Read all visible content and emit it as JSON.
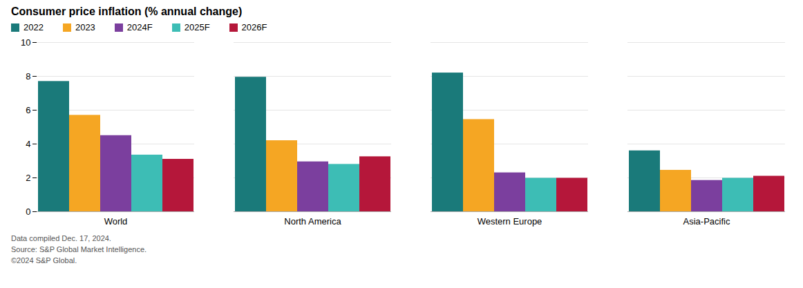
{
  "chart_data": {
    "type": "bar",
    "title": "Consumer price inflation (% annual change)",
    "categories": [
      "World",
      "North America",
      "Western Europe",
      "Asia-Pacific"
    ],
    "series": [
      {
        "name": "2022",
        "color": "#1a7a7a",
        "values": [
          7.7,
          7.95,
          8.2,
          3.6
        ]
      },
      {
        "name": "2023",
        "color": "#f5a623",
        "values": [
          5.7,
          4.2,
          5.45,
          2.45
        ]
      },
      {
        "name": "2024F",
        "color": "#7b3f9e",
        "values": [
          4.5,
          2.95,
          2.3,
          1.85
        ]
      },
      {
        "name": "2025F",
        "color": "#3dbdb5",
        "values": [
          3.35,
          2.8,
          1.98,
          1.98
        ]
      },
      {
        "name": "2026F",
        "color": "#b5173a",
        "values": [
          3.1,
          3.25,
          1.98,
          2.1
        ]
      }
    ],
    "ylim": [
      0,
      10
    ],
    "yticks": [
      0,
      2,
      4,
      6,
      8,
      10
    ],
    "grid": true,
    "legend": "top",
    "caption": [
      "Data compiled Dec. 17, 2024.",
      "Source: S&P Global Market Intelligence.",
      "©2024 S&P Global."
    ]
  }
}
